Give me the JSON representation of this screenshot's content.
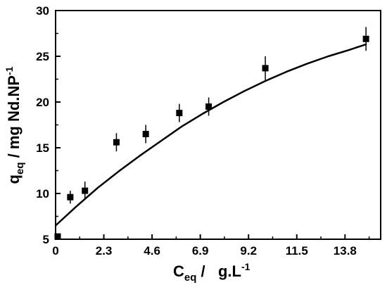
{
  "chart_data": {
    "type": "scatter",
    "title": "",
    "xlabel": {
      "main": "C",
      "sub": "eq",
      "middle": " /   g.L",
      "sup": "-1"
    },
    "ylabel": {
      "main": "q",
      "sub": "eq",
      "middle": " / mg Nd.NP",
      "sup": "-1"
    },
    "xlim": [
      0,
      15.5
    ],
    "ylim": [
      5,
      30
    ],
    "x_ticks": [
      0,
      2.3,
      4.6,
      6.9,
      9.2,
      11.5,
      13.8
    ],
    "x_tick_labels": [
      "0",
      "2.3",
      "4.6",
      "6.9",
      "9.2",
      "11.5",
      "13.8"
    ],
    "y_ticks": [
      5,
      10,
      15,
      20,
      25,
      30
    ],
    "y_tick_labels": [
      "5",
      "10",
      "15",
      "20",
      "25",
      "30"
    ],
    "grid": false,
    "series": [
      {
        "kind": "points",
        "marker": "square",
        "color": "#000000",
        "x": [
          0.1,
          0.7,
          1.4,
          2.9,
          4.3,
          5.9,
          7.3,
          10.0,
          14.8
        ],
        "y": [
          5.3,
          9.6,
          10.3,
          15.6,
          16.5,
          18.8,
          19.5,
          23.7,
          26.9
        ],
        "y_err": [
          0.3,
          0.7,
          1.0,
          1.0,
          1.0,
          1.0,
          1.0,
          1.3,
          1.3
        ]
      },
      {
        "kind": "line",
        "color": "#000000",
        "x": [
          0.0,
          1.0,
          2.0,
          3.0,
          4.0,
          5.0,
          6.0,
          7.0,
          8.0,
          9.0,
          10.0,
          11.0,
          12.0,
          13.0,
          14.0,
          14.8
        ],
        "y": [
          6.5,
          8.6,
          10.6,
          12.4,
          14.1,
          15.7,
          17.3,
          18.7,
          20.0,
          21.2,
          22.3,
          23.3,
          24.2,
          25.0,
          25.7,
          26.3
        ]
      }
    ]
  }
}
